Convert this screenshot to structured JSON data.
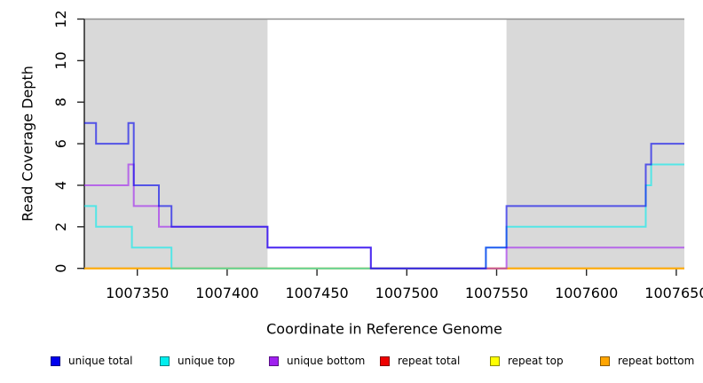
{
  "chart_data": {
    "type": "line",
    "subtype": "step-after",
    "title": "",
    "xlabel": "Coordinate in Reference Genome",
    "ylabel": "Read Coverage Depth",
    "xlim": [
      1007320.5,
      1007654.5
    ],
    "ylim": [
      0,
      12
    ],
    "x_ticks": [
      1007350,
      1007400,
      1007450,
      1007500,
      1007550,
      1007600,
      1007650
    ],
    "y_ticks": [
      0,
      2,
      4,
      6,
      8,
      10,
      12
    ],
    "grid": "off",
    "plot_bg": "#ffffff",
    "shade_color": "#d9d9d9",
    "shaded_regions": [
      {
        "x0": 1007320.5,
        "x1": 1007422.5
      },
      {
        "x0": 1007555.5,
        "x1": 1007654.5
      }
    ],
    "top_line": {
      "y": 12,
      "color": "#909090"
    },
    "axis_color": "#262626",
    "line_alpha": 0.62,
    "line_width": 2,
    "draw_order": [
      3,
      4,
      5,
      1,
      2,
      0
    ],
    "legend_position": "bottom",
    "series": [
      {
        "name": "unique total",
        "color": "#0000EE",
        "points": [
          [
            1007320.5,
            7
          ],
          [
            1007327,
            6
          ],
          [
            1007345,
            7
          ],
          [
            1007348,
            4
          ],
          [
            1007362,
            3
          ],
          [
            1007369,
            2
          ],
          [
            1007422.5,
            1
          ],
          [
            1007480,
            0
          ],
          [
            1007544,
            1
          ],
          [
            1007555.5,
            3
          ],
          [
            1007633,
            5
          ],
          [
            1007636,
            6
          ]
        ]
      },
      {
        "name": "unique top",
        "color": "#00EEEE",
        "points": [
          [
            1007320.5,
            3
          ],
          [
            1007327,
            2
          ],
          [
            1007347,
            1
          ],
          [
            1007369,
            0
          ],
          [
            1007544,
            1
          ],
          [
            1007555.5,
            2
          ],
          [
            1007633,
            4
          ],
          [
            1007636,
            5
          ]
        ]
      },
      {
        "name": "unique bottom",
        "color": "#A020F0",
        "points": [
          [
            1007320.5,
            4
          ],
          [
            1007345,
            5
          ],
          [
            1007348,
            3
          ],
          [
            1007362,
            2
          ],
          [
            1007422.5,
            1
          ],
          [
            1007480,
            0
          ],
          [
            1007555.5,
            1
          ]
        ]
      },
      {
        "name": "repeat total",
        "color": "#EE0000",
        "points": [
          [
            1007320.5,
            0
          ]
        ]
      },
      {
        "name": "repeat top",
        "color": "#FFFF00",
        "points": [
          [
            1007320.5,
            0
          ]
        ]
      },
      {
        "name": "repeat bottom",
        "color": "#FFA500",
        "points": [
          [
            1007320.5,
            0
          ]
        ]
      }
    ]
  }
}
